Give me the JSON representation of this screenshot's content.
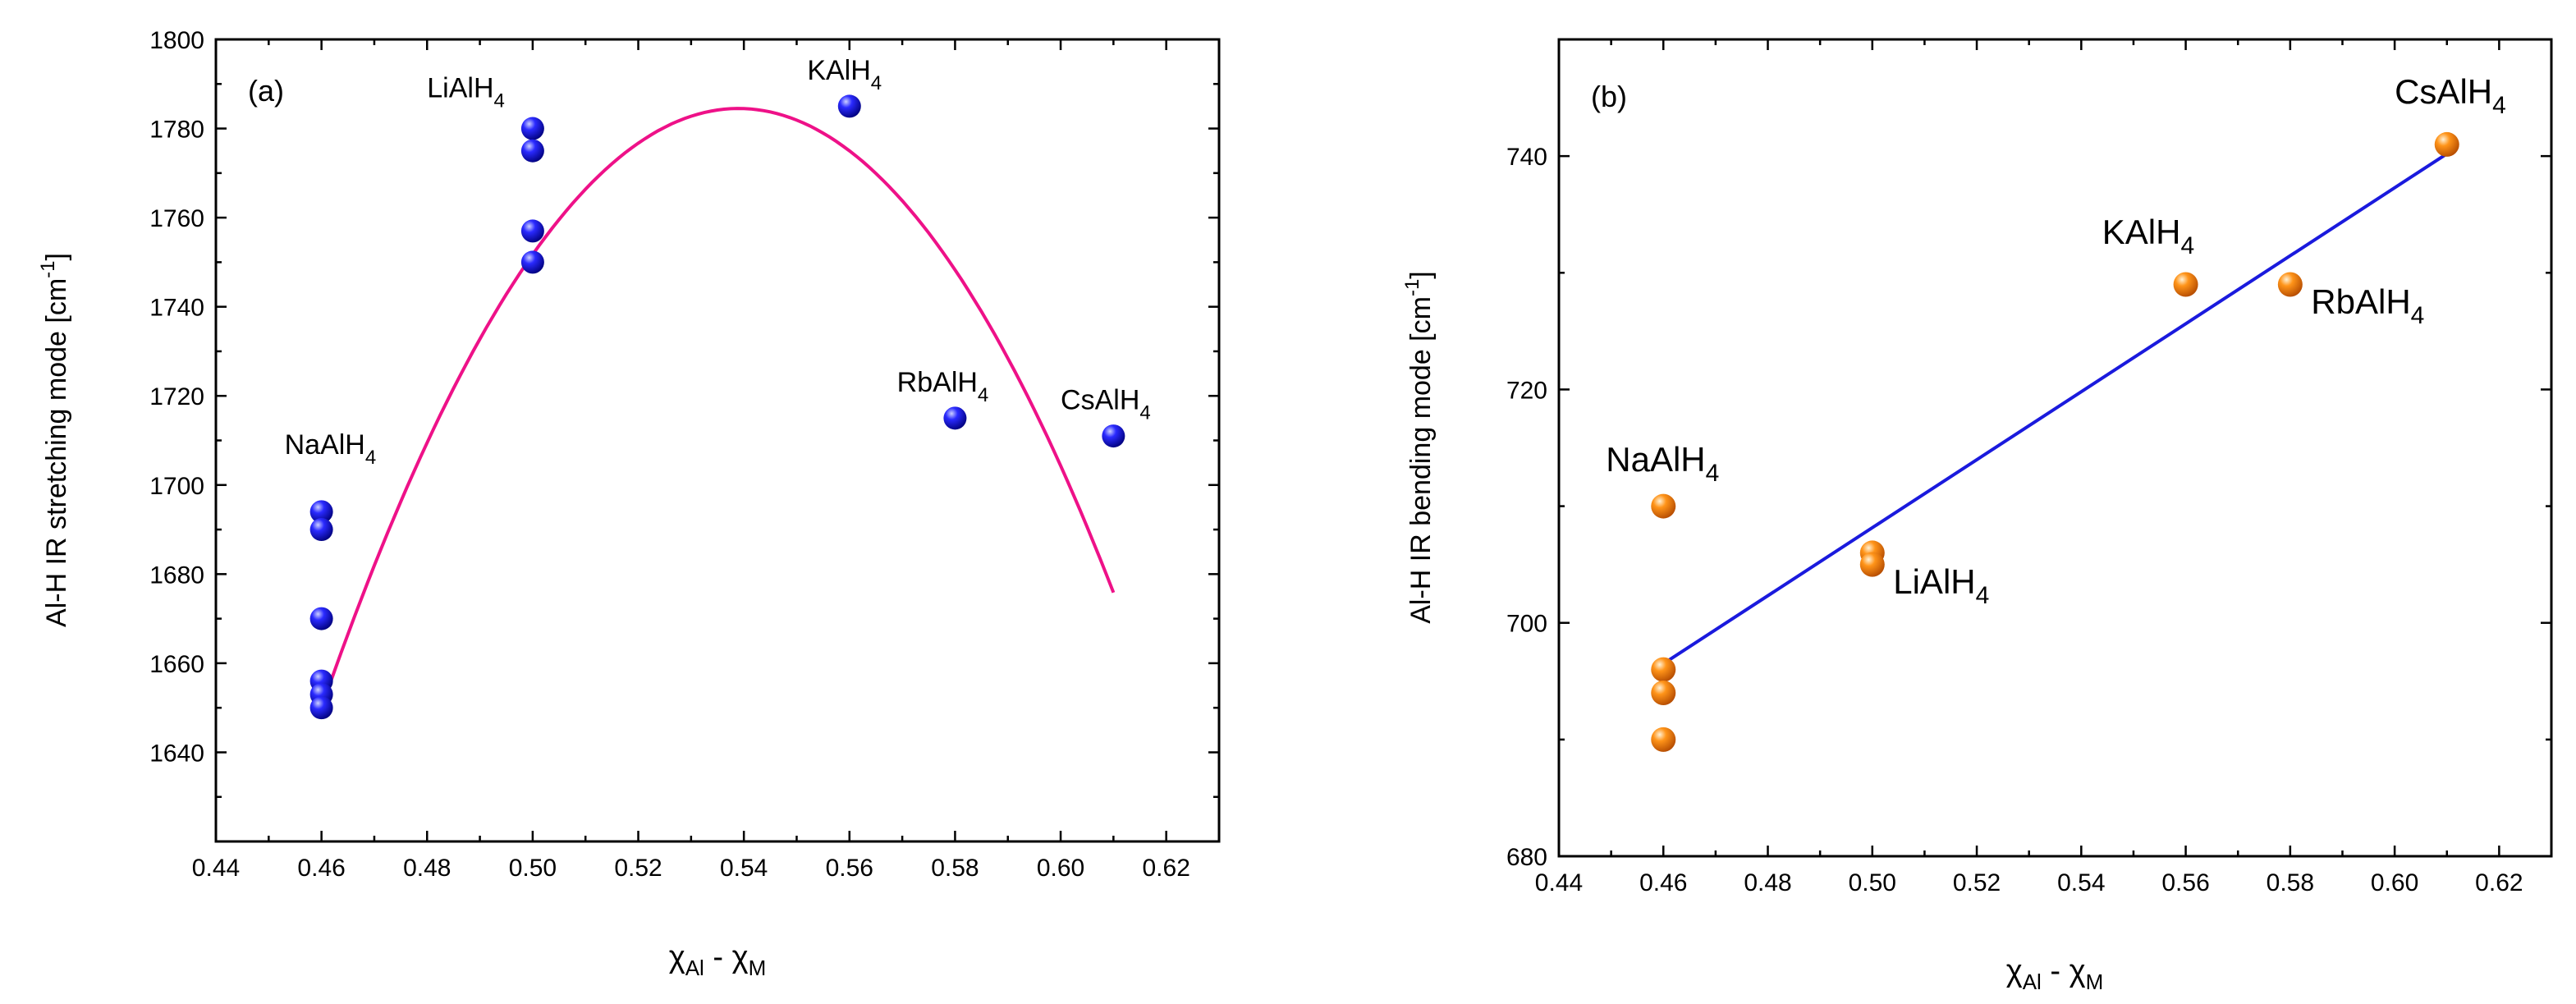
{
  "chart_data": [
    {
      "type": "scatter",
      "panel_label": "(a)",
      "xlabel": "χAl - χM",
      "ylabel": "Al-H IR stretching mode [cm-1]",
      "xlim": [
        0.44,
        0.63
      ],
      "ylim": [
        1620,
        1800
      ],
      "xticks": [
        0.44,
        0.46,
        0.48,
        0.5,
        0.52,
        0.54,
        0.56,
        0.58,
        0.6,
        0.62
      ],
      "yticks": [
        1640,
        1660,
        1680,
        1700,
        1720,
        1740,
        1760,
        1780,
        1800
      ],
      "marker_color": "#1a1aff",
      "fit_color": "#ee1188",
      "points": [
        {
          "x": 0.46,
          "y": 1694
        },
        {
          "x": 0.46,
          "y": 1690
        },
        {
          "x": 0.46,
          "y": 1670
        },
        {
          "x": 0.46,
          "y": 1656
        },
        {
          "x": 0.46,
          "y": 1653
        },
        {
          "x": 0.46,
          "y": 1650
        },
        {
          "x": 0.5,
          "y": 1780
        },
        {
          "x": 0.5,
          "y": 1775
        },
        {
          "x": 0.5,
          "y": 1757
        },
        {
          "x": 0.5,
          "y": 1750
        },
        {
          "x": 0.56,
          "y": 1785
        },
        {
          "x": 0.58,
          "y": 1715
        },
        {
          "x": 0.61,
          "y": 1711
        }
      ],
      "fit": {
        "type": "quadratic",
        "x_range": [
          0.46,
          0.61
        ],
        "vertex": [
          0.539,
          1784.5
        ],
        "at_x_min": 1650,
        "at_x_max": 1676
      },
      "annotations": [
        {
          "text": "NaAlH4",
          "base": "NaAlH",
          "sub": "4",
          "x": 0.453,
          "y": 1707
        },
        {
          "text": "LiAlH4",
          "base": "LiAlH",
          "sub": "4",
          "x": 0.48,
          "y": 1787
        },
        {
          "text": "KAlH4",
          "base": "KAlH",
          "sub": "4",
          "x": 0.552,
          "y": 1791
        },
        {
          "text": "RbAlH4",
          "base": "RbAlH",
          "sub": "4",
          "x": 0.569,
          "y": 1721
        },
        {
          "text": "CsAlH4",
          "base": "CsAlH",
          "sub": "4",
          "x": 0.6,
          "y": 1717
        }
      ]
    },
    {
      "type": "scatter",
      "panel_label": "(b)",
      "xlabel": "χAl - χM",
      "ylabel": "Al-H IR bending mode [cm-1]",
      "xlim": [
        0.44,
        0.63
      ],
      "ylim": [
        680,
        750
      ],
      "xticks": [
        0.44,
        0.46,
        0.48,
        0.5,
        0.52,
        0.54,
        0.56,
        0.58,
        0.6,
        0.62
      ],
      "yticks": [
        680,
        700,
        720,
        740
      ],
      "marker_color": "#ff8c1a",
      "fit_color": "#1a1add",
      "points": [
        {
          "x": 0.46,
          "y": 710
        },
        {
          "x": 0.46,
          "y": 696
        },
        {
          "x": 0.46,
          "y": 694
        },
        {
          "x": 0.46,
          "y": 690
        },
        {
          "x": 0.5,
          "y": 706
        },
        {
          "x": 0.5,
          "y": 705
        },
        {
          "x": 0.56,
          "y": 729
        },
        {
          "x": 0.58,
          "y": 729
        },
        {
          "x": 0.61,
          "y": 741
        }
      ],
      "fit": {
        "type": "linear",
        "x_range": [
          0.46,
          0.61
        ],
        "y_range": [
          696.5,
          740.2
        ]
      },
      "annotations": [
        {
          "text": "NaAlH4",
          "base": "NaAlH",
          "sub": "4",
          "x": 0.449,
          "y": 713
        },
        {
          "text": "LiAlH4",
          "base": "LiAlH",
          "sub": "4",
          "x": 0.504,
          "y": 702.5
        },
        {
          "text": "KAlH4",
          "base": "KAlH",
          "sub": "4",
          "x": 0.544,
          "y": 732.5
        },
        {
          "text": "RbAlH4",
          "base": "RbAlH",
          "sub": "4",
          "x": 0.584,
          "y": 726.5
        },
        {
          "text": "CsAlH4",
          "base": "CsAlH",
          "sub": "4",
          "x": 0.6,
          "y": 744.5
        }
      ]
    }
  ]
}
